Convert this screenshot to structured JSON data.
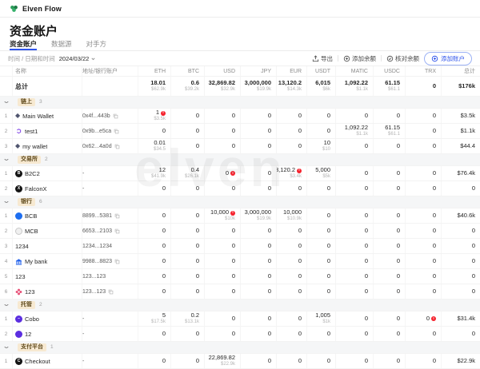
{
  "app": {
    "brand": "Elven Flow",
    "title": "资金账户"
  },
  "tabs": [
    {
      "label": "资金账户",
      "active": true
    },
    {
      "label": "数据源",
      "active": false
    },
    {
      "label": "对手方",
      "active": false
    }
  ],
  "filter": {
    "label": "时间 / 日期和时间",
    "value": "2024/03/22"
  },
  "toolbar": {
    "export": "导出",
    "add_balance": "添加余额",
    "reconcile": "核对余额",
    "add_account": "添加账户"
  },
  "colors": {
    "accent": "#2f54eb",
    "error": "#f5222d",
    "badge_bg": "#f7e9d1"
  },
  "watermark": "elven",
  "table": {
    "columns": [
      "名称",
      "地址/银行账户",
      "ETH",
      "BTC",
      "USD",
      "JPY",
      "EUR",
      "USDT",
      "MATIC",
      "USDC",
      "TRX",
      "总计"
    ],
    "total_row": {
      "label": "总计",
      "cells": [
        {
          "v": "18.01",
          "s": "$62.9k"
        },
        {
          "v": "0.6",
          "s": "$39.2k"
        },
        {
          "v": "32,869.82",
          "s": "$32.9k"
        },
        {
          "v": "3,000,000",
          "s": "$19.9k"
        },
        {
          "v": "13,120.2",
          "s": "$14.3k"
        },
        {
          "v": "6,015",
          "s": "$6k"
        },
        {
          "v": "1,092.22",
          "s": "$1.1k"
        },
        {
          "v": "61.15",
          "s": "$61.1"
        },
        {
          "v": "0"
        },
        {
          "v": "$176k"
        }
      ]
    },
    "groups": [
      {
        "label": "链上",
        "count": 3,
        "rows": [
          {
            "num": 1,
            "icon": "ethereum-icon",
            "name": "Main Wallet",
            "address": "0x4f...443b",
            "copy": true,
            "cells": [
              {
                "v": "1",
                "s": "$3.5k",
                "e": true
              },
              {
                "v": "0"
              },
              {
                "v": "0"
              },
              {
                "v": "0"
              },
              {
                "v": "0"
              },
              {
                "v": "0"
              },
              {
                "v": "0"
              },
              {
                "v": "0"
              },
              {
                "v": "0"
              },
              {
                "v": "$3.5k"
              }
            ]
          },
          {
            "num": 2,
            "icon": "polygon-icon",
            "name": "test1",
            "address": "0x9b...e5ca",
            "copy": true,
            "cells": [
              {
                "v": "0"
              },
              {
                "v": "0"
              },
              {
                "v": "0"
              },
              {
                "v": "0"
              },
              {
                "v": "0"
              },
              {
                "v": "0"
              },
              {
                "v": "1,092.22",
                "s": "$1.1k"
              },
              {
                "v": "61.15",
                "s": "$61.1"
              },
              {
                "v": "0"
              },
              {
                "v": "$1.1k"
              }
            ]
          },
          {
            "num": 3,
            "icon": "ethereum-icon",
            "name": "my wallet",
            "address": "0x62...4a0d",
            "copy": true,
            "cells": [
              {
                "v": "0.01",
                "s": "$34.5"
              },
              {
                "v": "0"
              },
              {
                "v": "0"
              },
              {
                "v": "0"
              },
              {
                "v": "0"
              },
              {
                "v": "10",
                "s": "$10"
              },
              {
                "v": "0"
              },
              {
                "v": "0"
              },
              {
                "v": "0"
              },
              {
                "v": "$44.4"
              }
            ]
          }
        ]
      },
      {
        "label": "交易所",
        "count": 2,
        "rows": [
          {
            "num": 1,
            "icon": "b2c2-icon",
            "name": "B2C2",
            "address": "-",
            "copy": false,
            "cells": [
              {
                "v": "12",
                "s": "$41.9k"
              },
              {
                "v": "0.4",
                "s": "$26.1k"
              },
              {
                "v": "0",
                "e": true
              },
              {
                "v": "0"
              },
              {
                "v": "3,120.2",
                "s": "$3.4k",
                "e": true
              },
              {
                "v": "5,000",
                "s": "$5k"
              },
              {
                "v": "0"
              },
              {
                "v": "0"
              },
              {
                "v": "0"
              },
              {
                "v": "$76.4k"
              }
            ]
          },
          {
            "num": 2,
            "icon": "falconx-icon",
            "name": "FalconX",
            "address": "-",
            "copy": false,
            "cells": [
              {
                "v": "0"
              },
              {
                "v": "0"
              },
              {
                "v": "0"
              },
              {
                "v": "0"
              },
              {
                "v": "0"
              },
              {
                "v": "0"
              },
              {
                "v": "0"
              },
              {
                "v": "0"
              },
              {
                "v": "0"
              },
              {
                "v": "0"
              }
            ]
          }
        ]
      },
      {
        "label": "银行",
        "count": 6,
        "rows": [
          {
            "num": 1,
            "icon": "bcb-icon",
            "name": "BCB",
            "address": "8899...5381",
            "copy": true,
            "cells": [
              {
                "v": "0"
              },
              {
                "v": "0"
              },
              {
                "v": "10,000",
                "s": "$10k",
                "e": true
              },
              {
                "v": "3,000,000",
                "s": "$19.9k"
              },
              {
                "v": "10,000",
                "s": "$10.9k"
              },
              {
                "v": "0"
              },
              {
                "v": "0"
              },
              {
                "v": "0"
              },
              {
                "v": "0"
              },
              {
                "v": "$40.6k"
              }
            ]
          },
          {
            "num": 2,
            "icon": "mcb-icon",
            "name": "MCB",
            "address": "6653...2103",
            "copy": true,
            "cells": [
              {
                "v": "0"
              },
              {
                "v": "0"
              },
              {
                "v": "0"
              },
              {
                "v": "0"
              },
              {
                "v": "0"
              },
              {
                "v": "0"
              },
              {
                "v": "0"
              },
              {
                "v": "0"
              },
              {
                "v": "0"
              },
              {
                "v": "0"
              }
            ]
          },
          {
            "num": 3,
            "icon": null,
            "name": "1234",
            "address": "1234...1234",
            "copy": false,
            "cells": [
              {
                "v": "0"
              },
              {
                "v": "0"
              },
              {
                "v": "0"
              },
              {
                "v": "0"
              },
              {
                "v": "0"
              },
              {
                "v": "0"
              },
              {
                "v": "0"
              },
              {
                "v": "0"
              },
              {
                "v": "0"
              },
              {
                "v": "0"
              }
            ]
          },
          {
            "num": 4,
            "icon": "bank-icon",
            "name": "My bank",
            "address": "9988...8823",
            "copy": true,
            "cells": [
              {
                "v": "0"
              },
              {
                "v": "0"
              },
              {
                "v": "0"
              },
              {
                "v": "0"
              },
              {
                "v": "0"
              },
              {
                "v": "0"
              },
              {
                "v": "0"
              },
              {
                "v": "0"
              },
              {
                "v": "0"
              },
              {
                "v": "0"
              }
            ]
          },
          {
            "num": 5,
            "icon": null,
            "name": "123",
            "address": "123...123",
            "copy": false,
            "cells": [
              {
                "v": "0"
              },
              {
                "v": "0"
              },
              {
                "v": "0"
              },
              {
                "v": "0"
              },
              {
                "v": "0"
              },
              {
                "v": "0"
              },
              {
                "v": "0"
              },
              {
                "v": "0"
              },
              {
                "v": "0"
              },
              {
                "v": "0"
              }
            ]
          },
          {
            "num": 6,
            "icon": "flower-icon",
            "name": "123",
            "address": "123...123",
            "copy": true,
            "cells": [
              {
                "v": "0"
              },
              {
                "v": "0"
              },
              {
                "v": "0"
              },
              {
                "v": "0"
              },
              {
                "v": "0"
              },
              {
                "v": "0"
              },
              {
                "v": "0"
              },
              {
                "v": "0"
              },
              {
                "v": "0"
              },
              {
                "v": "0"
              }
            ]
          }
        ]
      },
      {
        "label": "托管",
        "count": 2,
        "rows": [
          {
            "num": 1,
            "icon": "cobo-icon",
            "name": "Cobo",
            "address": "-",
            "copy": false,
            "cells": [
              {
                "v": "5",
                "s": "$17.5k"
              },
              {
                "v": "0.2",
                "s": "$13.1k"
              },
              {
                "v": "0"
              },
              {
                "v": "0"
              },
              {
                "v": "0"
              },
              {
                "v": "1,005",
                "s": "$1k"
              },
              {
                "v": "0"
              },
              {
                "v": "0"
              },
              {
                "v": "0",
                "e": true
              },
              {
                "v": "$31.4k"
              }
            ]
          },
          {
            "num": 2,
            "icon": "custody12-icon",
            "name": "12",
            "address": "-",
            "copy": false,
            "cells": [
              {
                "v": "0"
              },
              {
                "v": "0"
              },
              {
                "v": "0"
              },
              {
                "v": "0"
              },
              {
                "v": "0"
              },
              {
                "v": "0"
              },
              {
                "v": "0"
              },
              {
                "v": "0"
              },
              {
                "v": "0"
              },
              {
                "v": "0"
              }
            ]
          }
        ]
      },
      {
        "label": "支付平台",
        "count": 1,
        "rows": [
          {
            "num": 1,
            "icon": "checkout-icon",
            "name": "Checkout",
            "address": "-",
            "copy": false,
            "cells": [
              {
                "v": "0"
              },
              {
                "v": "0"
              },
              {
                "v": "22,869.82",
                "s": "$22.9k"
              },
              {
                "v": "0"
              },
              {
                "v": "0"
              },
              {
                "v": "0"
              },
              {
                "v": "0"
              },
              {
                "v": "0"
              },
              {
                "v": "0"
              },
              {
                "v": "$22.9k"
              }
            ]
          }
        ]
      }
    ]
  }
}
